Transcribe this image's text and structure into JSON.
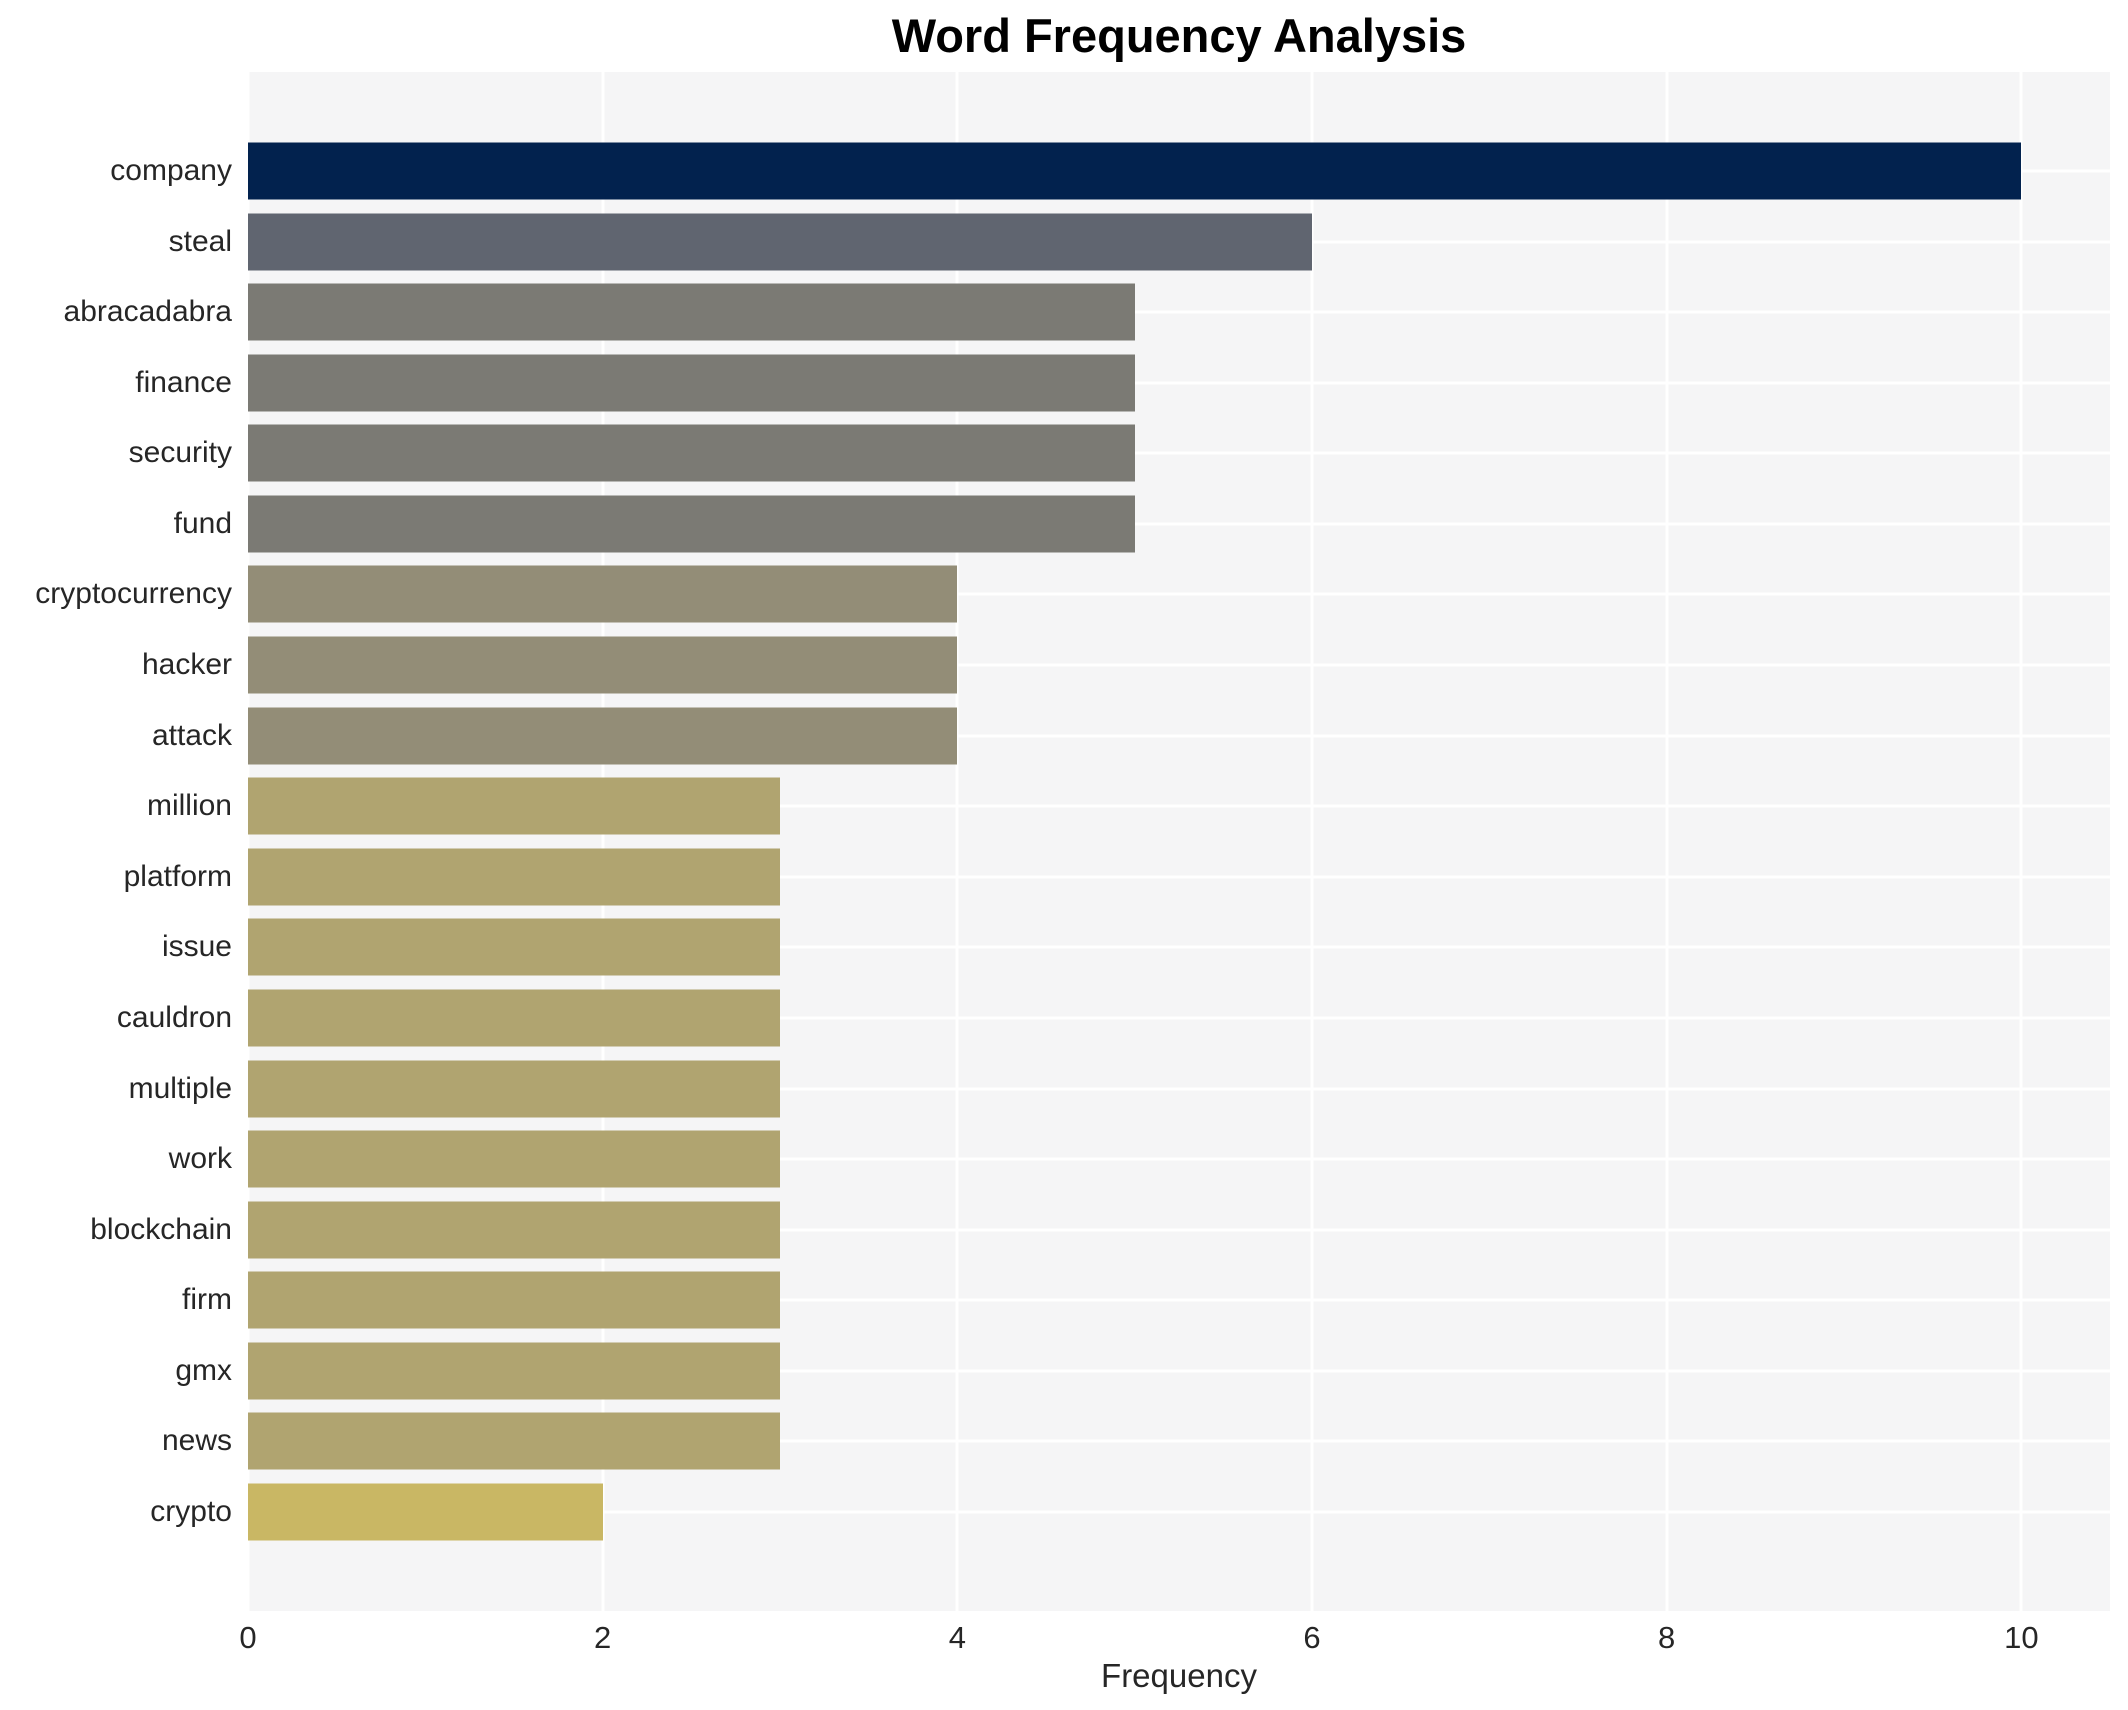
{
  "title": "Word Frequency Analysis",
  "chart_data": {
    "type": "bar",
    "orientation": "horizontal",
    "title": "Word Frequency Analysis",
    "xlabel": "Frequency",
    "ylabel": "",
    "categories": [
      "company",
      "steal",
      "abracadabra",
      "finance",
      "security",
      "fund",
      "cryptocurrency",
      "hacker",
      "attack",
      "million",
      "platform",
      "issue",
      "cauldron",
      "multiple",
      "work",
      "blockchain",
      "firm",
      "gmx",
      "news",
      "crypto"
    ],
    "values": [
      10,
      6,
      5,
      5,
      5,
      5,
      4,
      4,
      4,
      3,
      3,
      3,
      3,
      3,
      3,
      3,
      3,
      3,
      3,
      2
    ],
    "bar_colors": [
      "#02224e",
      "#606570",
      "#7b7a74",
      "#7b7a74",
      "#7b7a74",
      "#7b7a74",
      "#938d77",
      "#938d77",
      "#938d77",
      "#b0a470",
      "#b0a470",
      "#b0a470",
      "#b0a470",
      "#b0a470",
      "#b0a470",
      "#b0a470",
      "#b0a470",
      "#b0a470",
      "#b0a470",
      "#c9b764"
    ],
    "xlim": [
      0,
      10.5
    ],
    "xticks": [
      0,
      2,
      4,
      6,
      8,
      10
    ],
    "grid": true,
    "grid_color": "#ffffff",
    "plot_bg": "#f5f5f6",
    "legend": "none"
  }
}
